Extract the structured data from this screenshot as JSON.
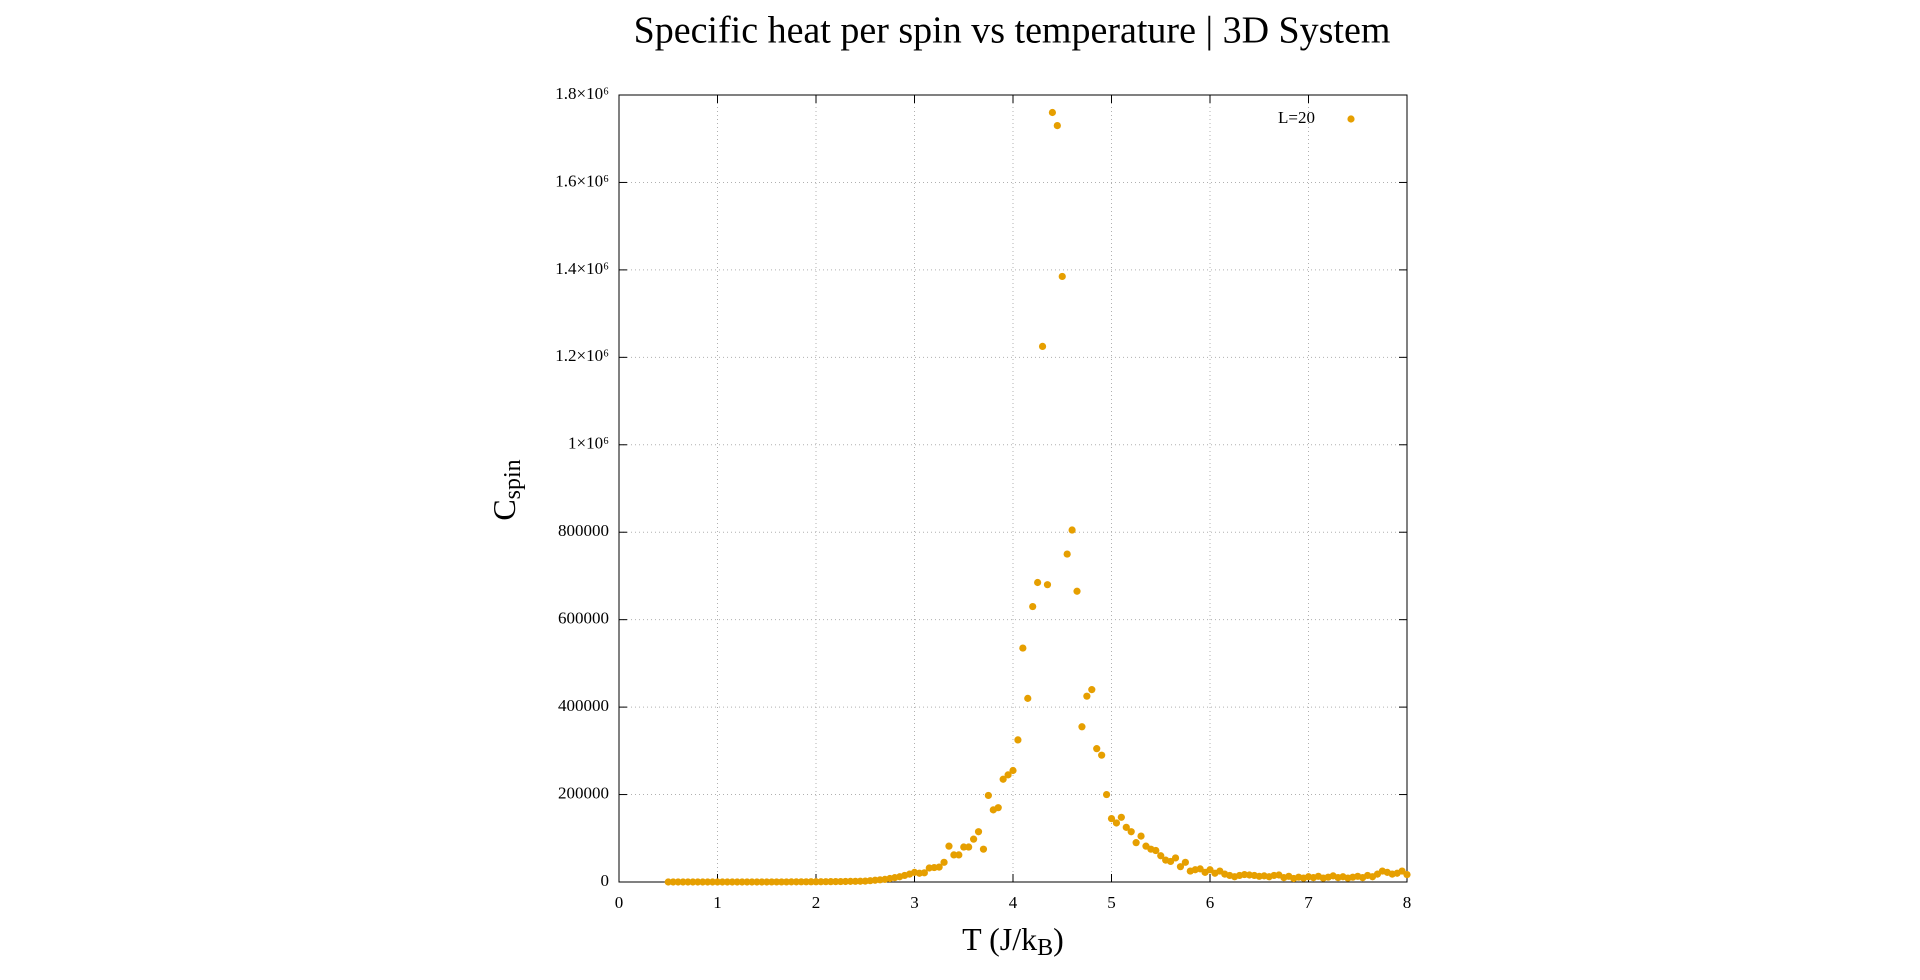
{
  "chart_data": {
    "type": "scatter",
    "title": "Specific heat per spin vs temperature | 3D System",
    "xlabel": [
      "T (J/k",
      "B",
      ")"
    ],
    "ylabel": [
      "C",
      "spin"
    ],
    "series": [
      {
        "name": "L=20",
        "color": "#e69f00",
        "x": [
          0.5,
          0.55,
          0.6,
          0.65,
          0.7,
          0.75,
          0.8,
          0.85,
          0.9,
          0.95,
          1.0,
          1.05,
          1.1,
          1.15,
          1.2,
          1.25,
          1.3,
          1.35,
          1.4,
          1.45,
          1.5,
          1.55,
          1.6,
          1.65,
          1.7,
          1.75,
          1.8,
          1.85,
          1.9,
          1.95,
          2.0,
          2.05,
          2.1,
          2.15,
          2.2,
          2.25,
          2.3,
          2.35,
          2.4,
          2.45,
          2.5,
          2.55,
          2.6,
          2.65,
          2.7,
          2.75,
          2.8,
          2.85,
          2.9,
          2.95,
          3.0,
          3.05,
          3.1,
          3.15,
          3.2,
          3.25,
          3.3,
          3.35,
          3.4,
          3.45,
          3.5,
          3.55,
          3.6,
          3.65,
          3.7,
          3.75,
          3.8,
          3.85,
          3.9,
          3.95,
          4.0,
          4.05,
          4.1,
          4.15,
          4.2,
          4.25,
          4.3,
          4.35,
          4.4,
          4.45,
          4.5,
          4.55,
          4.6,
          4.65,
          4.7,
          4.75,
          4.8,
          4.85,
          4.9,
          4.95,
          5.0,
          5.05,
          5.1,
          5.15,
          5.2,
          5.25,
          5.3,
          5.35,
          5.4,
          5.45,
          5.5,
          5.55,
          5.6,
          5.65,
          5.7,
          5.75,
          5.8,
          5.85,
          5.9,
          5.95,
          6.0,
          6.05,
          6.1,
          6.15,
          6.2,
          6.25,
          6.3,
          6.35,
          6.4,
          6.45,
          6.5,
          6.55,
          6.6,
          6.65,
          6.7,
          6.75,
          6.8,
          6.85,
          6.9,
          6.95,
          7.0,
          7.05,
          7.1,
          7.15,
          7.2,
          7.25,
          7.3,
          7.35,
          7.4,
          7.45,
          7.5,
          7.55,
          7.6,
          7.65,
          7.7,
          7.75,
          7.8,
          7.85,
          7.9,
          7.95,
          8.0
        ],
        "values": [
          0,
          0,
          0,
          0,
          0,
          0,
          0,
          0,
          0,
          0,
          0,
          0,
          0,
          0,
          0,
          0,
          0,
          0,
          0,
          0,
          0,
          100,
          100,
          200,
          200,
          300,
          300,
          400,
          400,
          500,
          500,
          600,
          700,
          800,
          900,
          1000,
          1200,
          1400,
          1600,
          1800,
          2000,
          3000,
          4000,
          5000,
          6000,
          8000,
          10000,
          12000,
          15000,
          18000,
          22000,
          20000,
          21000,
          32000,
          33000,
          34000,
          45000,
          82000,
          62000,
          62000,
          80000,
          80000,
          98000,
          115000,
          75000,
          198000,
          165000,
          170000,
          235000,
          245000,
          255000,
          325000,
          535000,
          420000,
          630000,
          685000,
          1225000,
          680000,
          1760000,
          1730000,
          1385000,
          750000,
          805000,
          665000,
          355000,
          425000,
          440000,
          305000,
          290000,
          200000,
          145000,
          135000,
          148000,
          125000,
          115000,
          90000,
          105000,
          82000,
          75000,
          72000,
          60000,
          50000,
          47000,
          55000,
          35000,
          45000,
          25000,
          28000,
          30000,
          22000,
          28000,
          20000,
          25000,
          18000,
          15000,
          12000,
          15000,
          17000,
          16000,
          15000,
          13000,
          14000,
          12000,
          15000,
          16000,
          10000,
          13000,
          8000,
          11000,
          9000,
          12000,
          10000,
          13000,
          9000,
          11000,
          14000,
          10000,
          12000,
          9000,
          11000,
          13000,
          10000,
          15000,
          12000,
          18000,
          25000,
          22000,
          18000,
          20000,
          25000,
          17000
        ]
      }
    ],
    "xlim": [
      0,
      8
    ],
    "xticks": [
      0,
      1,
      2,
      3,
      4,
      5,
      6,
      7,
      8
    ],
    "ylim": [
      0,
      1800000
    ],
    "yticks": [
      0,
      200000,
      400000,
      600000,
      800000,
      {
        "value": 1000000,
        "label": "1×10⁶"
      },
      {
        "value": 1200000,
        "label": "1.2×10⁶"
      },
      {
        "value": 1400000,
        "label": "1.4×10⁶"
      },
      {
        "value": 1600000,
        "label": "1.6×10⁶"
      },
      {
        "value": 1800000,
        "label": "1.8×10⁶"
      }
    ],
    "grid": true,
    "legend": "top-right"
  }
}
